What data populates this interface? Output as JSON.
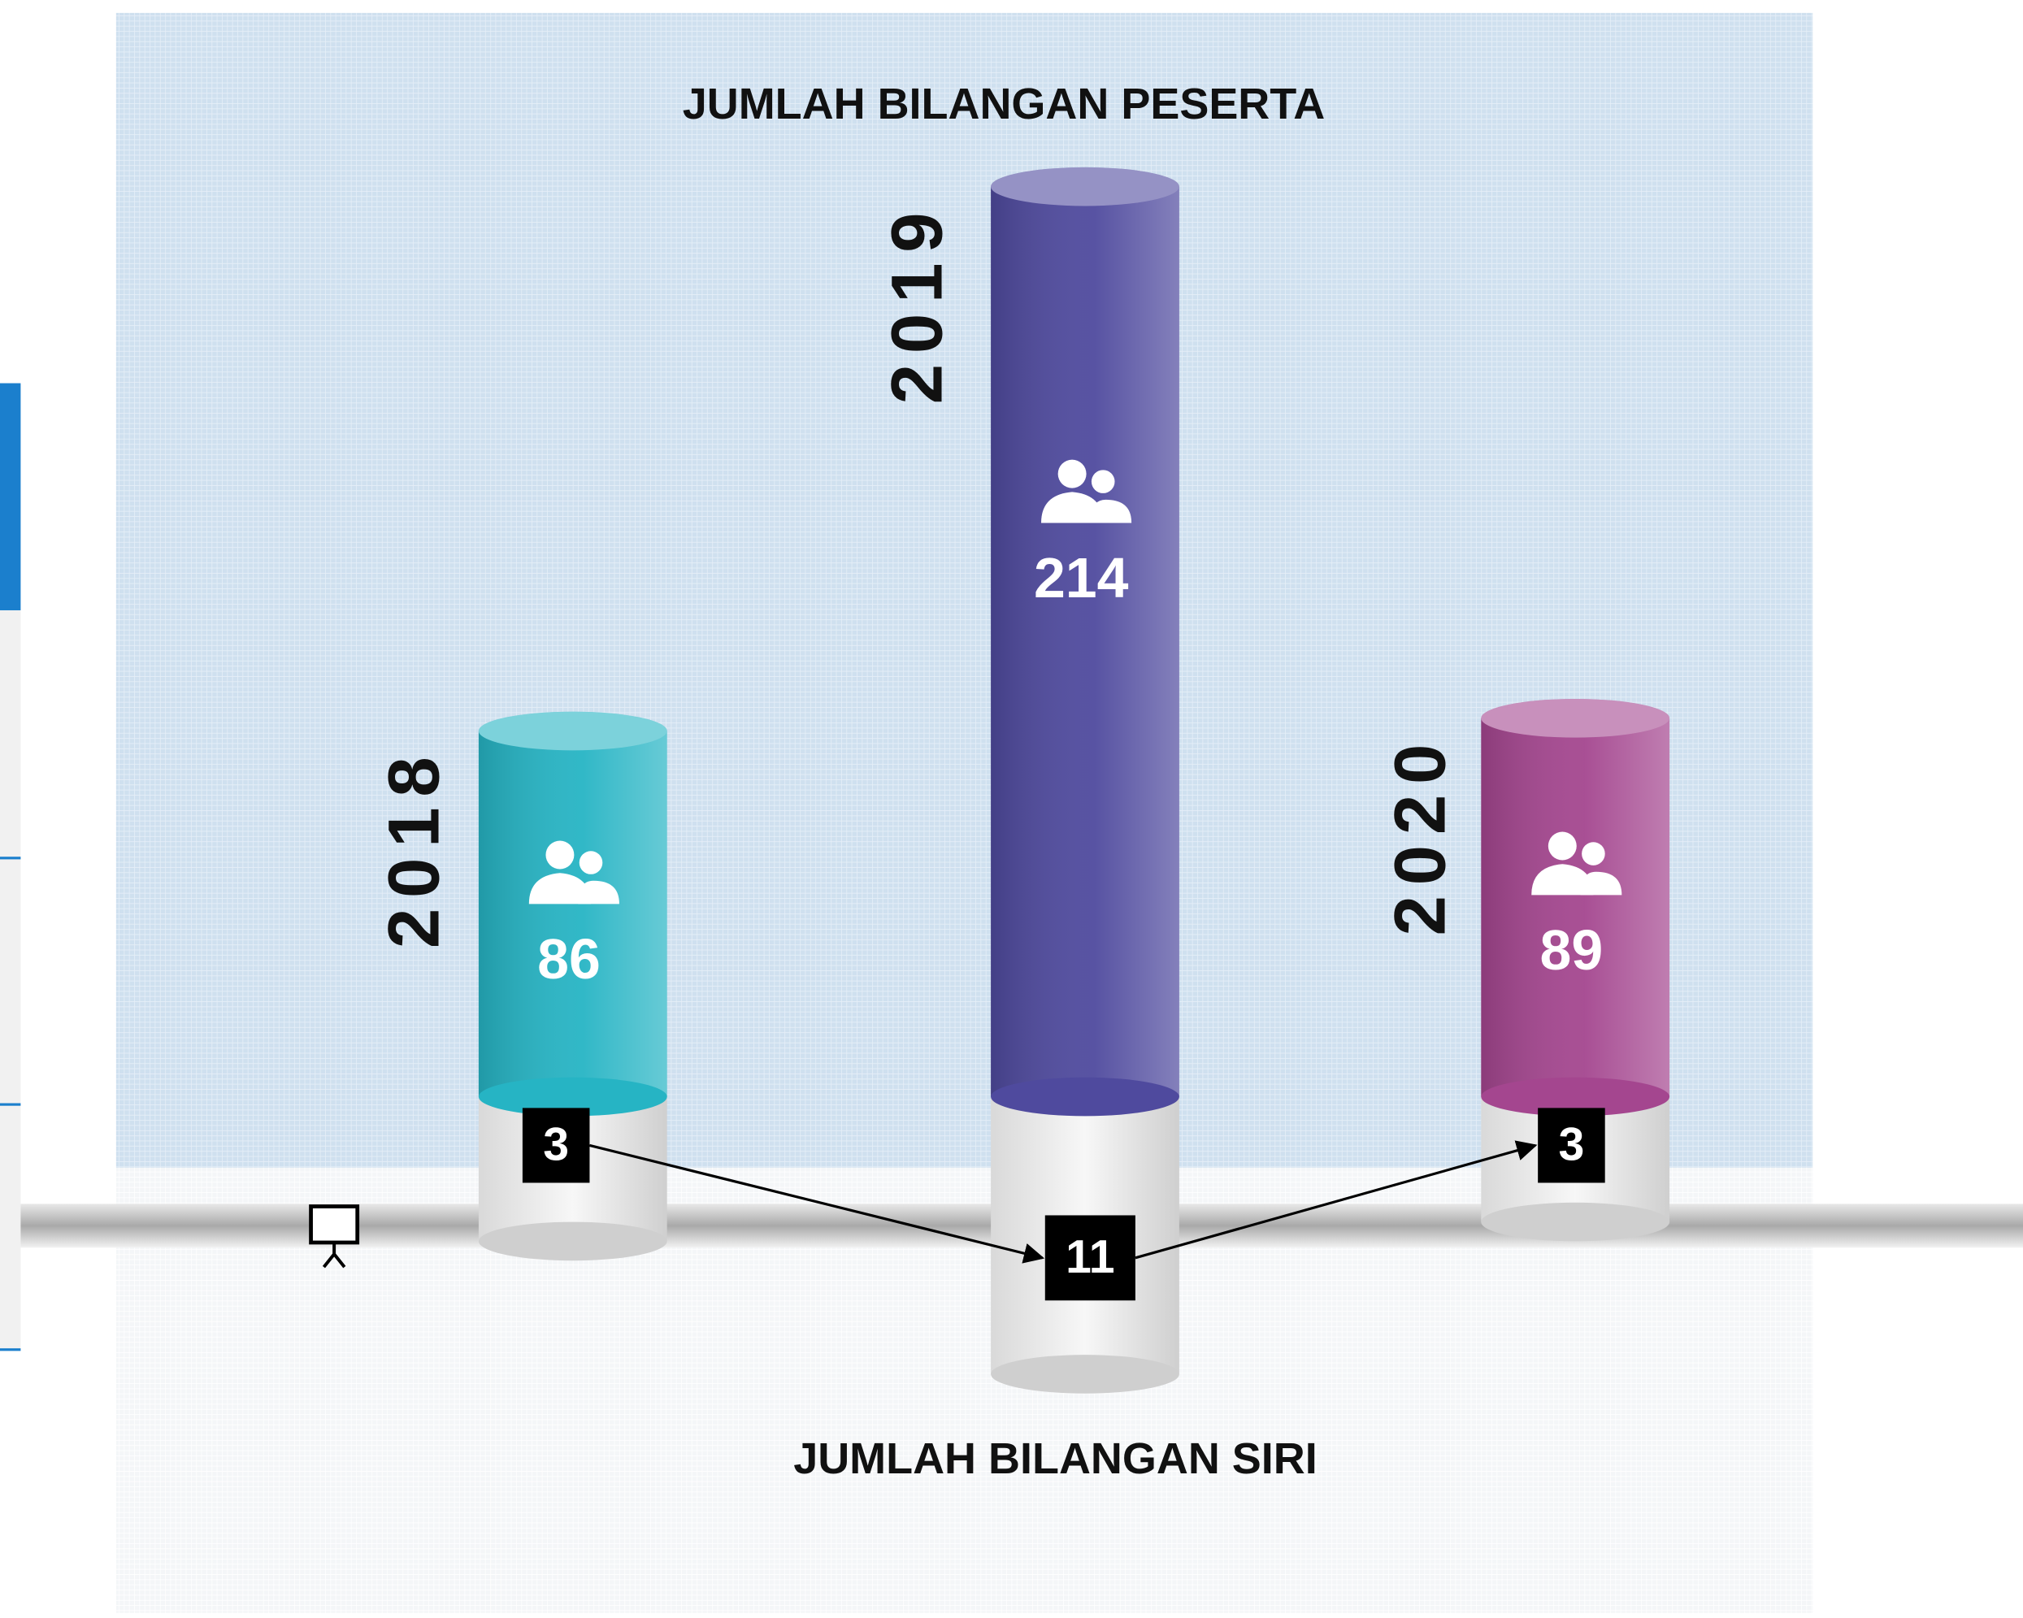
{
  "chart_data": {
    "type": "bar",
    "categories": [
      "2018",
      "2019",
      "2020"
    ],
    "series": [
      {
        "name": "JUMLAH BILANGAN PESERTA",
        "colors": [
          "#26b4c4",
          "#4f4a9e",
          "#a4468f"
        ],
        "values": [
          86,
          214,
          89
        ]
      },
      {
        "name": "JUMLAH BILANGAN SIRI",
        "color": "#000000",
        "axis": "y2",
        "values": [
          3,
          11,
          3
        ]
      }
    ],
    "ylim": [
      0,
      250
    ],
    "y2lim": [
      0,
      20
    ],
    "y2_inverted": true
  }
}
